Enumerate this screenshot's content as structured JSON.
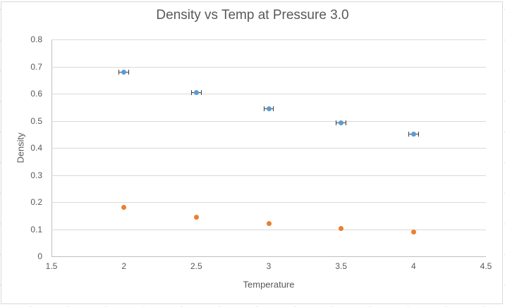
{
  "chart_data": {
    "type": "scatter",
    "title": "Density vs Temp at Pressure 3.0",
    "xlabel": "Temperature",
    "ylabel": "Density",
    "xlim": [
      1.5,
      4.5
    ],
    "ylim": [
      0,
      0.8
    ],
    "x_tick_values": [
      1.5,
      2,
      2.5,
      3,
      3.5,
      4,
      4.5
    ],
    "x_tick_labels": [
      "1.5",
      "2",
      "2.5",
      "3",
      "3.5",
      "4",
      "4.5"
    ],
    "y_tick_values": [
      0,
      0.1,
      0.2,
      0.3,
      0.4,
      0.5,
      0.6,
      0.7,
      0.8
    ],
    "y_tick_labels": [
      "0",
      "0.1",
      "0.2",
      "0.3",
      "0.4",
      "0.5",
      "0.6",
      "0.7",
      "0.8"
    ],
    "grid": "horizontal-only",
    "legend": "none",
    "series": [
      {
        "id": "series-1-blue",
        "marker": "circle",
        "color": "#5B9BD5",
        "x": [
          2,
          2.5,
          3,
          3.5,
          4
        ],
        "y": [
          0.68,
          0.603,
          0.545,
          0.492,
          0.45
        ],
        "x_error": [
          0.035,
          0.035,
          0.035,
          0.035,
          0.035
        ]
      },
      {
        "id": "series-2-orange",
        "marker": "circle",
        "color": "#ED7D31",
        "x": [
          2,
          2.5,
          3,
          3.5,
          4
        ],
        "y": [
          0.18,
          0.144,
          0.12,
          0.103,
          0.09
        ],
        "x_error": null
      }
    ],
    "colors": {
      "gridline": "#D9D9D9",
      "axis_line": "#BFBFBF",
      "tick_text": "#595959",
      "title_text": "#595959",
      "error_bar": "#404040",
      "chart_border": "#D9D9D9"
    }
  }
}
